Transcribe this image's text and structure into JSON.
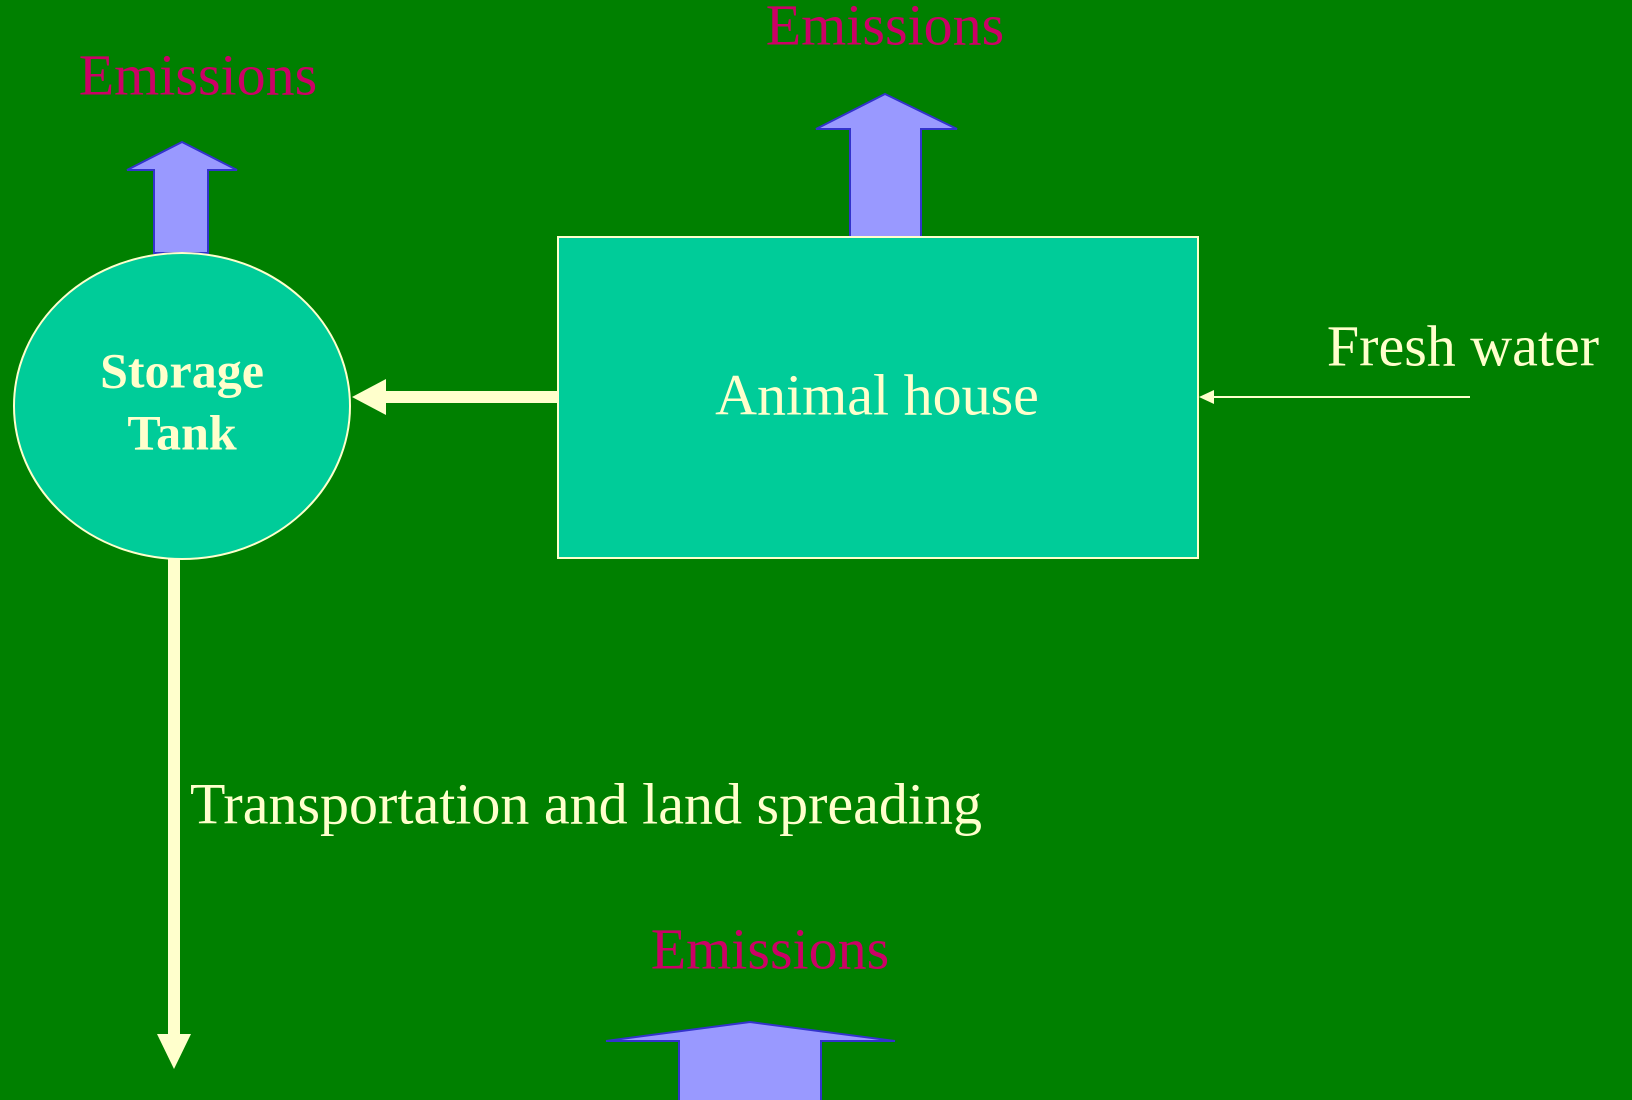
{
  "nodes": [
    {
      "label_lines": [
        "Storage",
        "Tank"
      ]
    },
    {
      "label": "Animal house"
    }
  ],
  "labels": {
    "emissions_storage": "Emissions",
    "emissions_house": "Emissions",
    "emissions_transport": "Emissions",
    "fresh_water": "Fresh water",
    "transport": "Transportation and land spreading"
  }
}
